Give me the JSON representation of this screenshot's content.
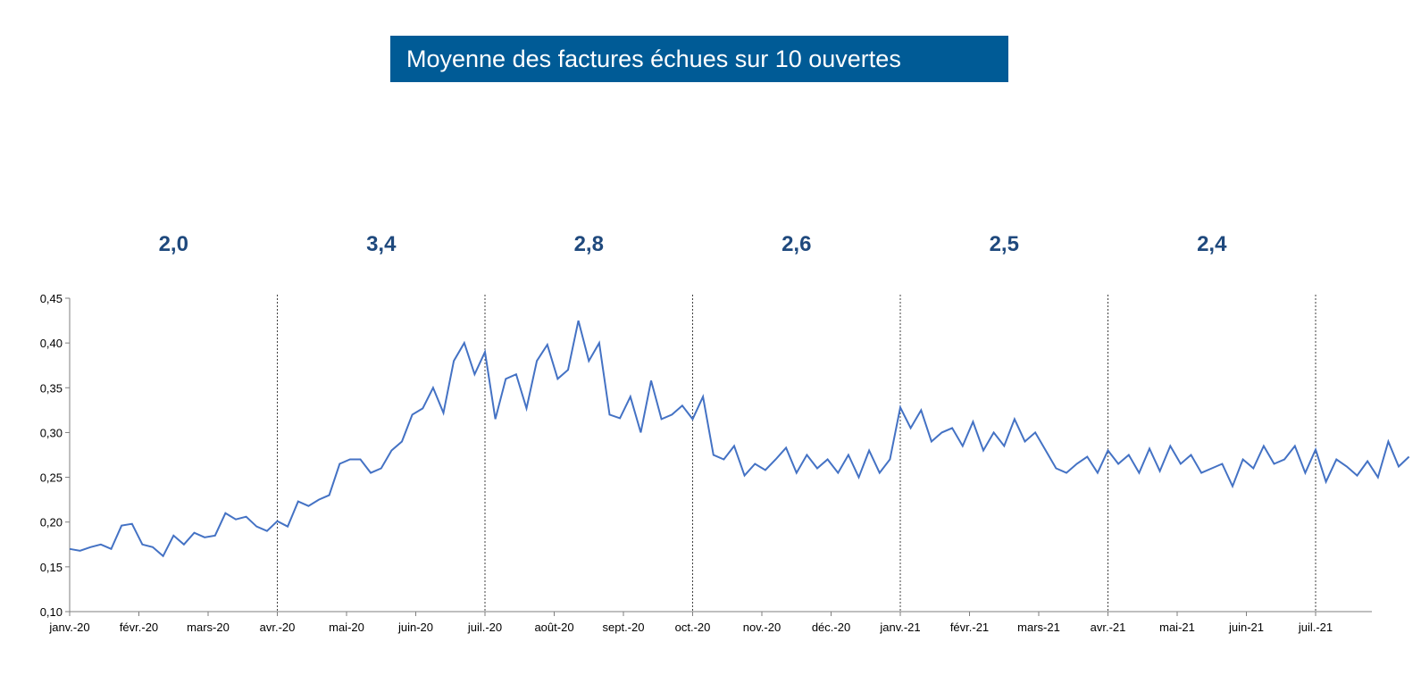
{
  "title": "Moyenne des factures échues sur 10 ouvertes",
  "colors": {
    "title_bg": "#005b96",
    "line": "#4472c4",
    "period_labels": "#1f497d"
  },
  "chart_data": {
    "type": "line",
    "title": "Moyenne des factures échues sur 10 ouvertes",
    "xlabel": "",
    "ylabel": "",
    "ylim": [
      0.1,
      0.45
    ],
    "y_ticks": [
      "0,10",
      "0,15",
      "0,20",
      "0,25",
      "0,30",
      "0,35",
      "0,40",
      "0,45"
    ],
    "x_ticks": [
      "janv.-20",
      "févr.-20",
      "mars-20",
      "avr.-20",
      "mai-20",
      "juin-20",
      "juil.-20",
      "août-20",
      "sept.-20",
      "oct.-20",
      "nov.-20",
      "déc.-20",
      "janv.-21",
      "févr.-21",
      "mars-21",
      "avr.-21",
      "mai-21",
      "juin-21",
      "juil.-21"
    ],
    "grid": false,
    "quarter_dividers": [
      "avr.-20",
      "juil.-20",
      "oct.-20",
      "janv.-21",
      "avr.-21",
      "juil.-21"
    ],
    "period_labels": [
      "2,0",
      "3,4",
      "2,8",
      "2,6",
      "2,5",
      "2,4"
    ],
    "series": [
      {
        "x": [
          0.0,
          0.15,
          0.3,
          0.45,
          0.6,
          0.75,
          0.9,
          1.05,
          1.2,
          1.35,
          1.5,
          1.65,
          1.8,
          1.95,
          2.1,
          2.25,
          2.4,
          2.55,
          2.7,
          2.85,
          3.0,
          3.15,
          3.3,
          3.45,
          3.6,
          3.75,
          3.9,
          4.05,
          4.2,
          4.35,
          4.5,
          4.65,
          4.8,
          4.95,
          5.1,
          5.25,
          5.4,
          5.55,
          5.7,
          5.85,
          6.0,
          6.15,
          6.3,
          6.45,
          6.6,
          6.75,
          6.9,
          7.05,
          7.2,
          7.35,
          7.5,
          7.65,
          7.8,
          7.95,
          8.1,
          8.25,
          8.4,
          8.55,
          8.7,
          8.85,
          9.0,
          9.15,
          9.3,
          9.45,
          9.6,
          9.75,
          9.9,
          10.05,
          10.2,
          10.35,
          10.5,
          10.65,
          10.8,
          10.95,
          11.1,
          11.25,
          11.4,
          11.55,
          11.7,
          11.85,
          12.0,
          12.15,
          12.3,
          12.45,
          12.6,
          12.75,
          12.9,
          13.05,
          13.2,
          13.35,
          13.5,
          13.65,
          13.8,
          13.95,
          14.1,
          14.25,
          14.4,
          14.55,
          14.7,
          14.85,
          15.0,
          15.15,
          15.3,
          15.45,
          15.6,
          15.75,
          15.9,
          16.05,
          16.2,
          16.35,
          16.5,
          16.65,
          16.8,
          16.95,
          17.1,
          17.25,
          17.4,
          17.55,
          17.7,
          17.85,
          18.0,
          18.15,
          18.3,
          18.45,
          18.6,
          18.75,
          18.9,
          19.05,
          19.2,
          19.35
        ],
        "y": [
          0.17,
          0.168,
          0.172,
          0.175,
          0.17,
          0.196,
          0.198,
          0.175,
          0.172,
          0.162,
          0.185,
          0.175,
          0.188,
          0.183,
          0.185,
          0.21,
          0.203,
          0.206,
          0.195,
          0.19,
          0.201,
          0.195,
          0.223,
          0.218,
          0.225,
          0.23,
          0.265,
          0.27,
          0.27,
          0.255,
          0.26,
          0.28,
          0.29,
          0.32,
          0.327,
          0.35,
          0.322,
          0.38,
          0.4,
          0.365,
          0.39,
          0.315,
          0.36,
          0.365,
          0.327,
          0.38,
          0.398,
          0.36,
          0.37,
          0.425,
          0.38,
          0.4,
          0.32,
          0.316,
          0.34,
          0.3,
          0.358,
          0.315,
          0.32,
          0.33,
          0.315,
          0.34,
          0.275,
          0.27,
          0.285,
          0.252,
          0.265,
          0.258,
          0.27,
          0.283,
          0.255,
          0.275,
          0.26,
          0.27,
          0.255,
          0.275,
          0.25,
          0.28,
          0.255,
          0.27,
          0.328,
          0.305,
          0.325,
          0.29,
          0.3,
          0.305,
          0.285,
          0.312,
          0.28,
          0.3,
          0.285,
          0.315,
          0.29,
          0.3,
          0.28,
          0.26,
          0.255,
          0.265,
          0.273,
          0.255,
          0.28,
          0.265,
          0.275,
          0.255,
          0.282,
          0.257,
          0.285,
          0.265,
          0.275,
          0.255,
          0.26,
          0.265,
          0.24,
          0.27,
          0.26,
          0.285,
          0.265,
          0.27,
          0.285,
          0.255,
          0.281,
          0.245,
          0.27,
          0.262,
          0.252,
          0.268,
          0.25,
          0.29,
          0.262,
          0.273
        ]
      }
    ]
  }
}
